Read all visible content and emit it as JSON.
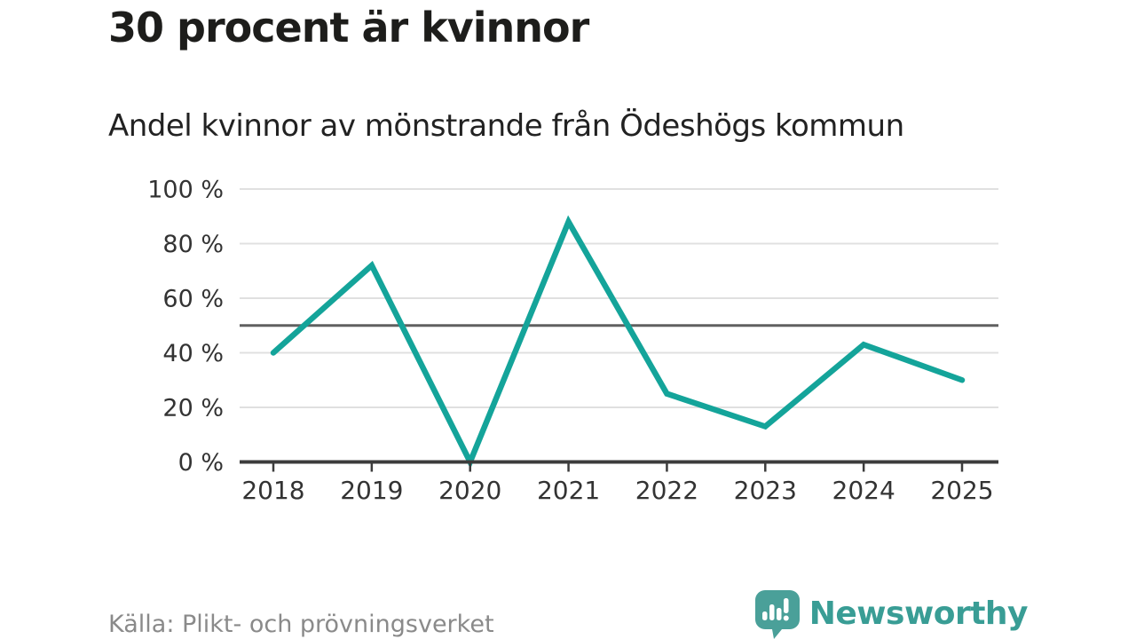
{
  "header": {
    "title": "30 procent är kvinnor",
    "subtitle": "Andel kvinnor av mönstrande från Ödeshögs kommun"
  },
  "footer": {
    "source": "Källa: Plikt- och prövningsverket",
    "brand_name": "Newsworthy"
  },
  "colors": {
    "line": "#14a49a",
    "grid": "#e0e0e0",
    "reference_line": "#606060",
    "axis": "#3c3c3c",
    "axis_text": "#333333",
    "source_text": "#8a8a8a",
    "brand_teal": "#4aa099",
    "brand_text": "#399d95"
  },
  "chart_data": {
    "type": "line",
    "title": "30 procent är kvinnor",
    "subtitle": "Andel kvinnor av mönstrande från Ödeshögs kommun",
    "x": [
      "2018",
      "2019",
      "2020",
      "2021",
      "2022",
      "2023",
      "2024",
      "2025"
    ],
    "series": [
      {
        "name": "Andel kvinnor av mönstrande",
        "values": [
          40,
          72,
          0,
          88,
          25,
          13,
          43,
          30
        ]
      }
    ],
    "unit": "%",
    "ylim": [
      0,
      100
    ],
    "y_ticks": [
      0,
      20,
      40,
      60,
      80,
      100
    ],
    "y_tick_labels": [
      "0 %",
      "20 %",
      "40 %",
      "60 %",
      "80 %",
      "100 %"
    ],
    "reference_line": 50,
    "grid": true,
    "legend": false,
    "xlabel": "",
    "ylabel": ""
  }
}
